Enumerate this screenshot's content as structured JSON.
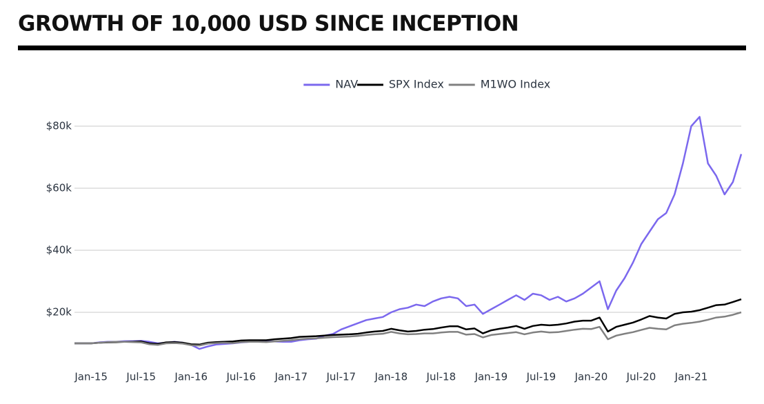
{
  "chart_data": {
    "type": "line",
    "title": "GROWTH OF 10,000 USD SINCE INCEPTION",
    "categories": [
      null,
      null,
      "Jan-15",
      null,
      null,
      null,
      null,
      null,
      "Jul-15",
      null,
      null,
      null,
      null,
      null,
      "Jan-16",
      null,
      null,
      null,
      null,
      null,
      "Jul-16",
      null,
      null,
      null,
      null,
      null,
      "Jan-17",
      null,
      null,
      null,
      null,
      null,
      "Jul-17",
      null,
      null,
      null,
      null,
      null,
      "Jan-18",
      null,
      null,
      null,
      null,
      null,
      "Jul-18",
      null,
      null,
      null,
      null,
      null,
      "Jan-19",
      null,
      null,
      null,
      null,
      null,
      "Jul-19",
      null,
      null,
      null,
      null,
      null,
      "Jan-20",
      null,
      null,
      null,
      null,
      null,
      "Jul-20",
      null,
      null,
      null,
      null,
      null,
      "Jan-21",
      null,
      null,
      null,
      null,
      null,
      null
    ],
    "series": [
      {
        "name": "NAV",
        "color": "#7b68ee",
        "values": [
          10000,
          10000,
          10000,
          10300,
          10500,
          10500,
          10700,
          10700,
          10800,
          10500,
          10000,
          10200,
          10500,
          10200,
          9500,
          8200,
          9000,
          9600,
          9800,
          10000,
          10300,
          10500,
          10800,
          10600,
          10600,
          10500,
          10500,
          11000,
          11300,
          11500,
          12500,
          13000,
          14500,
          15500,
          16500,
          17500,
          18000,
          18500,
          20000,
          21000,
          21500,
          22500,
          22000,
          23500,
          24500,
          25000,
          24500,
          22000,
          22500,
          19500,
          21000,
          22500,
          24000,
          25500,
          24000,
          26000,
          25500,
          24000,
          25000,
          23500,
          24500,
          26000,
          28000,
          30000,
          21000,
          27000,
          31000,
          36000,
          42000,
          46000,
          50000,
          52000,
          58000,
          68000,
          80000,
          83000,
          68000,
          64000,
          58000,
          62000,
          71000
        ]
      },
      {
        "name": "SPX Index",
        "color": "#000000",
        "values": [
          10000,
          10000,
          10000,
          10200,
          10300,
          10400,
          10500,
          10500,
          10600,
          10000,
          9800,
          10300,
          10400,
          10200,
          9700,
          9600,
          10200,
          10400,
          10500,
          10600,
          10900,
          11000,
          11000,
          11000,
          11300,
          11500,
          11700,
          12100,
          12200,
          12300,
          12500,
          12700,
          12800,
          12900,
          13100,
          13500,
          13800,
          14000,
          14700,
          14200,
          13800,
          14000,
          14400,
          14600,
          15100,
          15500,
          15500,
          14500,
          14800,
          13200,
          14200,
          14700,
          15100,
          15600,
          14700,
          15600,
          16000,
          15800,
          16000,
          16400,
          17000,
          17300,
          17300,
          18300,
          13800,
          15300,
          16000,
          16700,
          17700,
          18800,
          18300,
          18000,
          19500,
          20000,
          20200,
          20700,
          21500,
          22300,
          22500,
          23300,
          24200
        ]
      },
      {
        "name": "M1WO Index",
        "color": "#808080",
        "values": [
          10000,
          10000,
          10000,
          10200,
          10400,
          10500,
          10500,
          10400,
          10300,
          9700,
          9500,
          10000,
          10100,
          9900,
          9400,
          9300,
          9900,
          10100,
          10200,
          10100,
          10400,
          10500,
          10500,
          10400,
          10600,
          10800,
          11000,
          11300,
          11500,
          11600,
          11800,
          12000,
          12100,
          12200,
          12400,
          12700,
          12900,
          13100,
          13700,
          13200,
          12900,
          13000,
          13200,
          13200,
          13500,
          13700,
          13700,
          12800,
          13000,
          11900,
          12700,
          13000,
          13300,
          13600,
          12900,
          13500,
          13800,
          13500,
          13600,
          14000,
          14400,
          14700,
          14600,
          15300,
          11300,
          12500,
          13100,
          13600,
          14300,
          15000,
          14700,
          14500,
          15800,
          16300,
          16600,
          17000,
          17600,
          18300,
          18600,
          19200,
          20000
        ]
      }
    ],
    "ylim": [
      3000,
      88000
    ],
    "yticks": [
      {
        "value": 20000,
        "label": "$20k"
      },
      {
        "value": 40000,
        "label": "$40k"
      },
      {
        "value": 60000,
        "label": "$60k"
      },
      {
        "value": 80000,
        "label": "$80k"
      }
    ],
    "grid": true,
    "legend": "top"
  }
}
